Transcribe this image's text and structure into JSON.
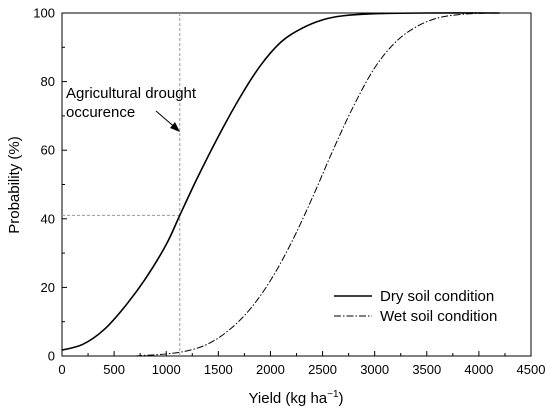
{
  "chart_data": {
    "type": "line",
    "xlabel": "Yield (kg ha",
    "xlabel_sup": "−1",
    "xlabel_close": ")",
    "ylabel": "Probability (%)",
    "xlim": [
      0,
      4500
    ],
    "ylim": [
      0,
      100
    ],
    "x_ticks": [
      "0",
      "500",
      "1000",
      "1500",
      "2000",
      "2500",
      "3000",
      "3500",
      "4000",
      "4500"
    ],
    "y_ticks": [
      "0",
      "20",
      "40",
      "60",
      "80",
      "100"
    ],
    "grid": false,
    "legend_position": "bottom-right",
    "annotation": {
      "line1": "Agricultural drought",
      "line2": "occurence",
      "x": 1130,
      "y": 41
    },
    "series": [
      {
        "name": "Dry soil condition",
        "style": "solid",
        "color": "#000000",
        "points": [
          [
            0,
            1.7
          ],
          [
            200,
            3.4
          ],
          [
            400,
            7.6
          ],
          [
            600,
            14.3
          ],
          [
            800,
            22.5
          ],
          [
            1000,
            32.5
          ],
          [
            1130,
            41
          ],
          [
            1300,
            52
          ],
          [
            1500,
            64
          ],
          [
            1700,
            75
          ],
          [
            1900,
            84.5
          ],
          [
            2100,
            91.5
          ],
          [
            2300,
            95.5
          ],
          [
            2500,
            98
          ],
          [
            2700,
            99.2
          ],
          [
            3000,
            99.8
          ],
          [
            3500,
            100
          ],
          [
            4200,
            100
          ]
        ]
      },
      {
        "name": "Wet soil condition",
        "style": "dash-dot",
        "color": "#000000",
        "points": [
          [
            700,
            0
          ],
          [
            800,
            0.2
          ],
          [
            1000,
            0.6
          ],
          [
            1200,
            1.5
          ],
          [
            1400,
            3.5
          ],
          [
            1600,
            7.5
          ],
          [
            1800,
            13.5
          ],
          [
            2000,
            22
          ],
          [
            2200,
            33
          ],
          [
            2400,
            46
          ],
          [
            2600,
            60
          ],
          [
            2800,
            73
          ],
          [
            3000,
            84
          ],
          [
            3200,
            91.5
          ],
          [
            3400,
            96
          ],
          [
            3600,
            98.5
          ],
          [
            3800,
            99.5
          ],
          [
            4000,
            99.9
          ],
          [
            4300,
            100
          ]
        ]
      }
    ]
  }
}
